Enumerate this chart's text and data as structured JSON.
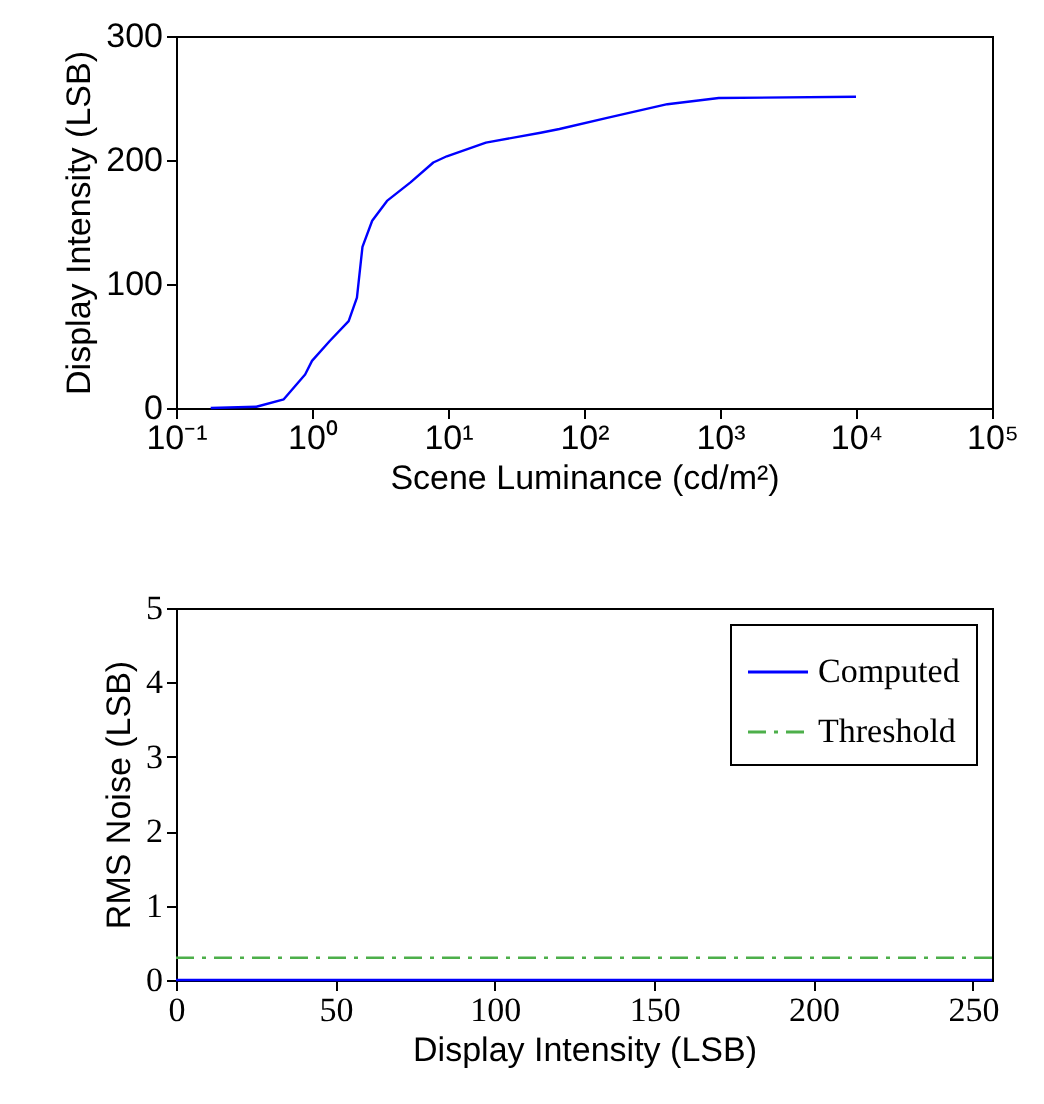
{
  "chart_data": [
    {
      "type": "line",
      "xlabel": "Scene Luminance (cd/m²)",
      "ylabel": "Display Intensity (LSB)",
      "log": "x",
      "xlim": [
        0.1,
        100000
      ],
      "ylim": [
        0,
        300
      ],
      "xticks": [
        {
          "value": 0.1,
          "label": "10⁻¹"
        },
        {
          "value": 1,
          "label": "10⁰"
        },
        {
          "value": 10,
          "label": "10¹"
        },
        {
          "value": 100,
          "label": "10²"
        },
        {
          "value": 1000,
          "label": "10³"
        },
        {
          "value": 10000,
          "label": "10⁴"
        },
        {
          "value": 100000,
          "label": "10⁵"
        }
      ],
      "yticks": [
        0,
        100,
        200,
        300
      ],
      "grid": false,
      "series": [
        {
          "color": "#0000ff",
          "x": [
            0.18,
            0.39,
            0.62,
            0.89,
            1.0,
            1.35,
            1.86,
            2.14,
            2.35,
            2.77,
            3.56,
            5.3,
            7.8,
            9.8,
            19,
            48,
            66,
            148,
            410,
            980,
            10000
          ],
          "values": [
            0,
            1,
            7,
            27,
            38,
            54,
            70,
            89,
            130,
            151,
            167,
            182,
            198,
            203,
            214,
            222,
            225,
            234,
            245,
            250,
            251
          ]
        }
      ]
    },
    {
      "type": "line",
      "xlabel": "Display Intensity (LSB)",
      "ylabel": "RMS Noise (LSB)",
      "xlim": [
        0,
        256
      ],
      "ylim": [
        0,
        5
      ],
      "xticks": [
        0,
        50,
        100,
        150,
        200,
        250
      ],
      "yticks": [
        0,
        1,
        2,
        3,
        4,
        5
      ],
      "grid": false,
      "legend": "top right",
      "series": [
        {
          "name": "Computed",
          "color": "#0000ff",
          "x": [
            0,
            256
          ],
          "values": [
            0,
            0
          ],
          "line_style": "solid"
        },
        {
          "name": "Threshold",
          "color": "#4daf4a",
          "x": [
            0,
            256
          ],
          "values": [
            0.3,
            0.3
          ],
          "line_style": "dashed"
        }
      ]
    }
  ]
}
